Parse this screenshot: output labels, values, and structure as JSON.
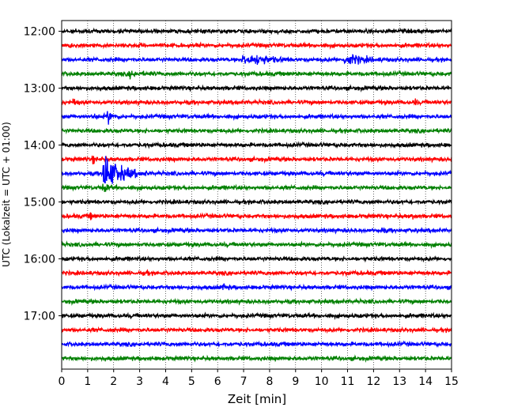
{
  "chart_data": {
    "type": "line",
    "title": "",
    "xlabel": "Zeit  [min]",
    "ylabel": "UTC (Lokalzeit = UTC + 01:00)",
    "xlim": [
      0,
      15
    ],
    "x_ticks": [
      0,
      1,
      2,
      3,
      4,
      5,
      6,
      7,
      8,
      9,
      10,
      11,
      12,
      13,
      14,
      15
    ],
    "x_tick_labels": [
      "0",
      "1",
      "2",
      "3",
      "4",
      "5",
      "6",
      "7",
      "8",
      "9",
      "10",
      "11",
      "12",
      "13",
      "14",
      "15"
    ],
    "y_tick_labels": [
      "12:00",
      "13:00",
      "14:00",
      "15:00",
      "16:00",
      "17:00"
    ],
    "y_tick_rows": [
      0,
      4,
      8,
      12,
      16,
      20
    ],
    "grid": "vertical-dotted",
    "line_colors": [
      "#000000",
      "#ff0000",
      "#0000ff",
      "#008000"
    ],
    "trace_count": 24,
    "trace_start": "12:00",
    "trace_minutes": 15,
    "events": [
      {
        "row": 1,
        "x": 0.3,
        "amplitude": 0.35,
        "duration": 0.2
      },
      {
        "row": 2,
        "x": 7.0,
        "amplitude": 0.7,
        "duration": 1.5
      },
      {
        "row": 2,
        "x": 7.5,
        "amplitude": 0.6,
        "duration": 1.5
      },
      {
        "row": 2,
        "x": 10.9,
        "amplitude": 0.7,
        "duration": 1.6
      },
      {
        "row": 3,
        "x": 2.6,
        "amplitude": 0.3,
        "duration": 1.0
      },
      {
        "row": 5,
        "x": 0.45,
        "amplitude": 0.45,
        "duration": 0.2
      },
      {
        "row": 5,
        "x": 13.6,
        "amplitude": 0.35,
        "duration": 0.2
      },
      {
        "row": 6,
        "x": 1.75,
        "amplitude": 0.8,
        "duration": 0.5
      },
      {
        "row": 6,
        "x": 1.2,
        "amplitude": 0.3,
        "duration": 0.6
      },
      {
        "row": 9,
        "x": 1.2,
        "amplitude": 0.4,
        "duration": 0.3
      },
      {
        "row": 10,
        "x": 1.6,
        "amplitude": 2.4,
        "duration": 1.8
      },
      {
        "row": 11,
        "x": 1.6,
        "amplitude": 0.5,
        "duration": 0.5
      },
      {
        "row": 13,
        "x": 1.1,
        "amplitude": 0.35,
        "duration": 0.2
      },
      {
        "row": 13,
        "x": 13.5,
        "amplitude": 0.3,
        "duration": 0.3
      },
      {
        "row": 14,
        "x": 12.3,
        "amplitude": 0.3,
        "duration": 0.2
      },
      {
        "row": 17,
        "x": 3.2,
        "amplitude": 0.4,
        "duration": 0.2
      },
      {
        "row": 18,
        "x": 6.2,
        "amplitude": 0.3,
        "duration": 0.4
      }
    ]
  }
}
